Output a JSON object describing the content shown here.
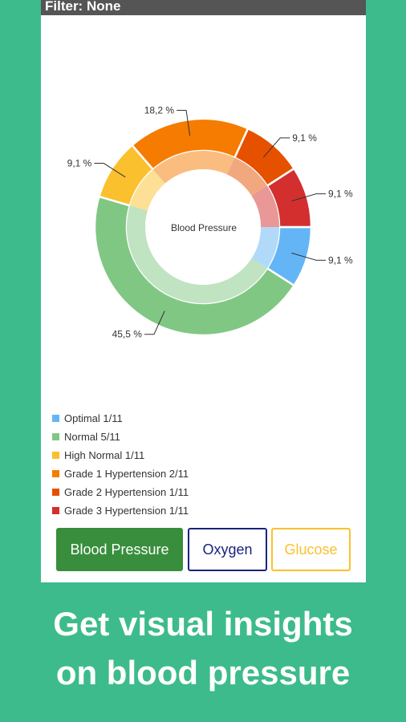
{
  "filter": {
    "label": "Filter: None"
  },
  "chart_data": {
    "type": "pie",
    "title": "Blood Pressure",
    "categories": [
      "Optimal",
      "Normal",
      "High Normal",
      "Grade 1 Hypertension",
      "Grade 2 Hypertension",
      "Grade 3 Hypertension"
    ],
    "values": [
      9.1,
      45.5,
      9.1,
      18.2,
      9.1,
      9.1
    ],
    "value_labels": [
      "9,1 %",
      "45,5 %",
      "9,1 %",
      "18,2 %",
      "9,1 %",
      "9,1 %"
    ],
    "legend": [
      "Optimal 1/11",
      "Normal 5/11",
      "High Normal 1/11",
      "Grade 1 Hypertension 2/11",
      "Grade 2 Hypertension 1/11",
      "Grade 3 Hypertension 1/11"
    ],
    "colors": [
      "#64b5f6",
      "#81c784",
      "#fbc02d",
      "#f57c00",
      "#e65100",
      "#d32f2f"
    ],
    "legend_position": "bottom-left"
  },
  "buttons": {
    "blood_pressure": "Blood Pressure",
    "oxygen": "Oxygen",
    "glucose": "Glucose"
  },
  "colors": {
    "background": "#3dbb8c",
    "active_button": "#388e3c",
    "oxygen_accent": "#1a237e",
    "glucose_accent": "#fbc02d"
  },
  "tagline": {
    "line1": "Get visual insights",
    "line2": "on blood pressure"
  }
}
